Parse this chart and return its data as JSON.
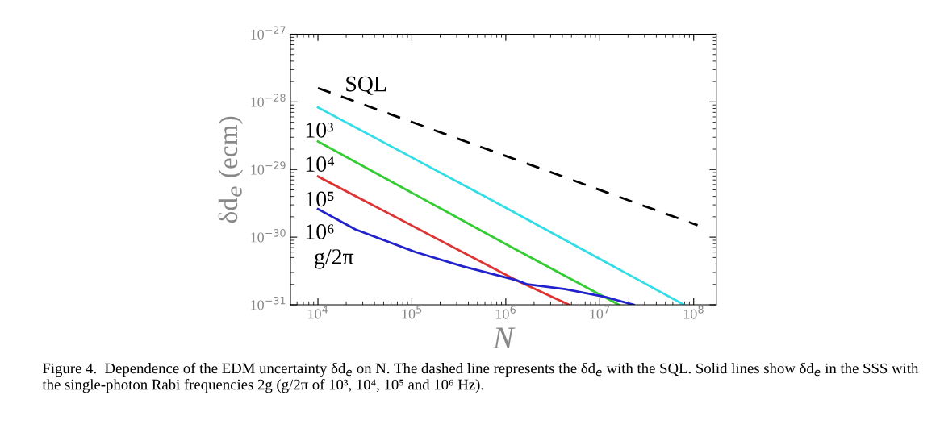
{
  "chart_data": {
    "type": "line",
    "xlabel": "N",
    "ylabel": "δd$_{e}$ (ecm)",
    "log": "xy",
    "grid": false,
    "legend": false,
    "xlim": [
      5100,
      174000000
    ],
    "ylim": [
      1e-31,
      1e-27
    ],
    "xticks": [
      {
        "value": 10000,
        "label": "10$^{4}$"
      },
      {
        "value": 100000,
        "label": "10$^{5}$"
      },
      {
        "value": 1000000,
        "label": "10$^{6}$"
      },
      {
        "value": 10000000,
        "label": "10$^{7}$"
      },
      {
        "value": 100000000,
        "label": "10$^{8}$"
      }
    ],
    "yticks": [
      {
        "value": 1e-31,
        "label": "10$^{−31}$"
      },
      {
        "value": 1e-30,
        "label": "10$^{−30}$"
      },
      {
        "value": 1e-29,
        "label": "10$^{−29}$"
      },
      {
        "value": 1e-28,
        "label": "10$^{−28}$"
      },
      {
        "value": 1e-27,
        "label": "10$^{−27}$"
      }
    ],
    "series": [
      {
        "name": "SQL",
        "color": "#000000",
        "line_style": "dashed",
        "x": [
          10000,
          110000000
        ],
        "values": [
          1.6e-28,
          1.5e-30
        ]
      },
      {
        "name": "10³",
        "color": "#33dde6",
        "line_style": "solid",
        "x": [
          10000,
          580000,
          79000000
        ],
        "values": [
          8.3e-29,
          4.1e-30,
          1e-31
        ]
      },
      {
        "name": "10⁴",
        "color": "#33cc33",
        "line_style": "solid",
        "x": [
          10000,
          1000000,
          16000000
        ],
        "values": [
          2.6e-29,
          7.9e-31,
          1e-31
        ]
      },
      {
        "name": "10⁵",
        "color": "#dd3333",
        "line_style": "solid",
        "x": [
          10000,
          1300000,
          4700000
        ],
        "values": [
          7.9e-30,
          2.3e-31,
          1e-31
        ]
      },
      {
        "name": "10⁶",
        "color": "#2222cc",
        "line_style": "solid",
        "x": [
          10000,
          25000,
          110000,
          350000,
          1300000,
          1700000,
          4300000,
          11500000,
          23000000
        ],
        "values": [
          2.6e-30,
          1.3e-30,
          6e-31,
          3.7e-31,
          2.3e-31,
          2e-31,
          1.7e-31,
          1.3e-31,
          1e-31
        ]
      }
    ],
    "annotations": [
      "g/2π",
      "Figure 4.  Dependence of the EDM uncertainty δd$_{e}$ on N. The dashed line represents the δd$_{e}$ with the SQL. Solid lines show δd$_{e}$ in the SSS with the single-photon Rabi frequencies 2g (g/2π of 10³, 10⁴, 10⁵ and 10⁶ Hz)."
    ]
  }
}
